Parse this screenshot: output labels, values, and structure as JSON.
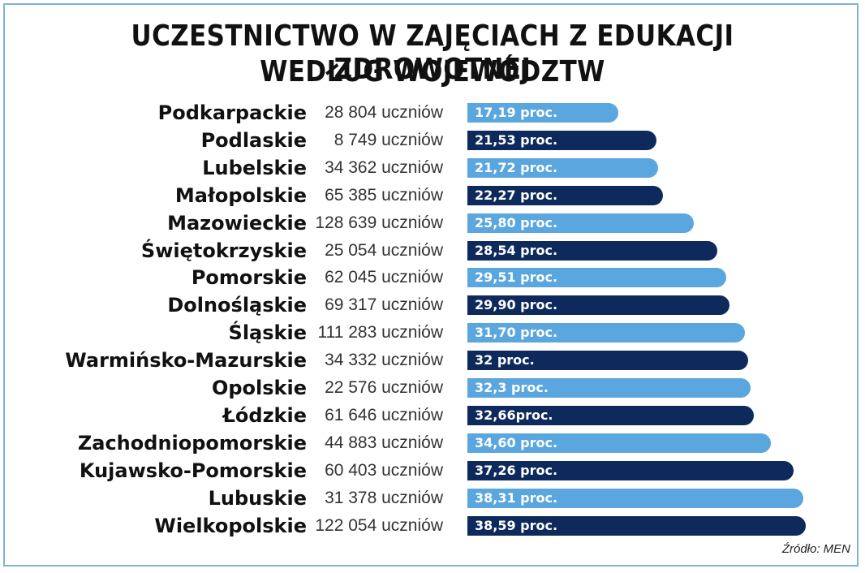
{
  "title_line1": "UCZESTNICTWO W ZAJĘCIACH Z EDUKACJI ZDROWOTNEJ",
  "title_line2": "WEDŁUG WOJEWÓDZTW",
  "source": "Źródło: MEN",
  "colors": {
    "light": "#5aa6de",
    "dark": "#0e2a5c"
  },
  "chart_data": {
    "type": "bar",
    "orientation": "horizontal",
    "title": "UCZESTNICTWO W ZAJĘCIACH Z EDUKACJI ZDROWOTNEJ WEDŁUG WOJEWÓDZTW",
    "unit": "proc.",
    "xlim": [
      0,
      40
    ],
    "categories": [
      "Podkarpackie",
      "Podlaskie",
      "Lubelskie",
      "Małopolskie",
      "Mazowieckie",
      "Świętokrzyskie",
      "Pomorskie",
      "Dolnośląskie",
      "Śląskie",
      "Warmińsko-Mazurskie",
      "Opolskie",
      "Łódzkie",
      "Zachodniopomorskie",
      "Kujawsko-Pomorskie",
      "Lubuskie",
      "Wielkopolskie"
    ],
    "values": [
      17.19,
      21.53,
      21.72,
      22.27,
      25.8,
      28.54,
      29.51,
      29.9,
      31.7,
      32,
      32.3,
      32.66,
      34.6,
      37.26,
      38.31,
      38.59
    ],
    "value_labels": [
      "17,19 proc.",
      "21,53 proc.",
      "21,72 proc.",
      "22,27 proc.",
      "25,80 proc.",
      "28,54 proc.",
      "29,51 proc.",
      "29,90 proc.",
      "31,70 proc.",
      "32 proc.",
      "32,3 proc.",
      "32,66proc.",
      "34,60 proc.",
      "37,26 proc.",
      "38,31 proc.",
      "38,59 proc."
    ],
    "counts": [
      "28 804 uczniów",
      "8 749 uczniów",
      "34 362 uczniów",
      "65 385 uczniów",
      "128 639 uczniów",
      "25 054 uczniów",
      "62 045 uczniów",
      "69 317 uczniów",
      "111 283 uczniów",
      "34 332 uczniów",
      "22 576 uczniów",
      "61 646 uczniów",
      "44 883 uczniów",
      "60 403 uczniów",
      "31 378 uczniów",
      "122 054 uczniów"
    ],
    "grid": false,
    "legend": "none"
  }
}
